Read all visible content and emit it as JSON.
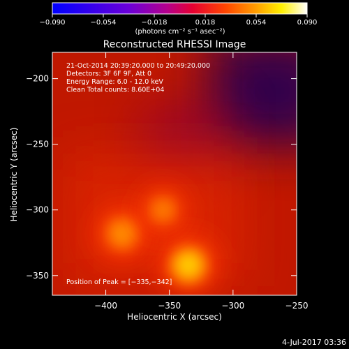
{
  "chart_data": {
    "type": "heatmap",
    "title": "Reconstructed RHESSI Image",
    "xlabel": "Heliocentric X (arcsec)",
    "ylabel": "Heliocentric Y (arcsec)",
    "xlim": [
      -442,
      -250
    ],
    "ylim": [
      -365,
      -180
    ],
    "x_ticks": [
      -400,
      -350,
      -300,
      -250
    ],
    "y_ticks": [
      -200,
      -250,
      -300,
      -350
    ],
    "x_tick_labels": [
      "−400",
      "−350",
      "−300",
      "−250"
    ],
    "y_tick_labels": [
      "−200",
      "−250",
      "−300",
      "−350"
    ],
    "colorbar": {
      "range": [
        -0.09,
        0.09
      ],
      "ticks": [
        -0.09,
        -0.054,
        -0.018,
        0.018,
        0.054,
        0.09
      ],
      "tick_labels": [
        "−0.090",
        "−0.054",
        "−0.018",
        "0.018",
        "0.054",
        "0.090"
      ],
      "label": "(photons cm⁻² s⁻¹ asec⁻²)",
      "colormap": [
        "#0000ff",
        "#6b00d8",
        "#b4008c",
        "#e60032",
        "#ff4600",
        "#ff9e00",
        "#fff000",
        "#ffffff"
      ]
    },
    "annotations": [
      "21-Oct-2014 20:39:20.000 to 20:49:20.000",
      "Detectors: 3F 6F 9F, Att 0",
      "Energy Range: 6.0 - 12.0 keV",
      "Clean     Total counts: 8.60E+04"
    ],
    "peak_label": "Position of Peak = [−335,−342]",
    "sources": [
      {
        "x": -335,
        "y": -342,
        "peak": 0.09,
        "sigma": 9
      },
      {
        "x": -387,
        "y": -318,
        "peak": 0.07,
        "sigma": 8
      },
      {
        "x": -355,
        "y": -300,
        "peak": 0.055,
        "sigma": 7
      }
    ]
  },
  "footer_date": "4-Jul-2017 03:36"
}
